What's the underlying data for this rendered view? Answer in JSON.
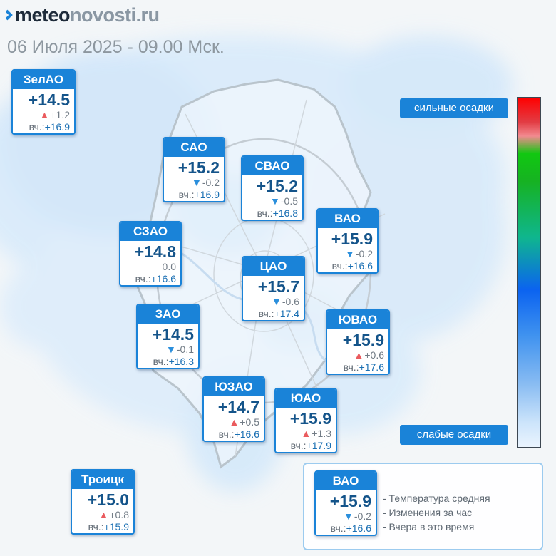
{
  "brand": {
    "meteo": "meteo",
    "novosti": "novosti",
    "ru": ".ru"
  },
  "date_line": "06 Июля 2025 - 09.00 Мск.",
  "yest_label": "вч.:",
  "colorbar": {
    "top_label": "сильные осадки",
    "bottom_label": "слабые осадки",
    "colors": [
      "#ff0000",
      "#11c811",
      "#0b63f0",
      "#eaf4fe"
    ]
  },
  "districts": [
    {
      "name": "ЗелАО",
      "temp": "+14.5",
      "dir": "up",
      "change": "+1.2",
      "yest": "+16.9"
    },
    {
      "name": "САО",
      "temp": "+15.2",
      "dir": "down",
      "change": "-0.2",
      "yest": "+16.9"
    },
    {
      "name": "СВАО",
      "temp": "+15.2",
      "dir": "down",
      "change": "-0.5",
      "yest": "+16.8"
    },
    {
      "name": "ВАО",
      "temp": "+15.9",
      "dir": "down",
      "change": "-0.2",
      "yest": "+16.6"
    },
    {
      "name": "СЗАО",
      "temp": "+14.8",
      "dir": "none",
      "change": "0.0",
      "yest": "+16.6"
    },
    {
      "name": "ЦАО",
      "temp": "+15.7",
      "dir": "down",
      "change": "-0.6",
      "yest": "+17.4"
    },
    {
      "name": "ЗАО",
      "temp": "+14.5",
      "dir": "down",
      "change": "-0.1",
      "yest": "+16.3"
    },
    {
      "name": "ЮВАО",
      "temp": "+15.9",
      "dir": "up",
      "change": "+0.6",
      "yest": "+17.6"
    },
    {
      "name": "ЮЗАО",
      "temp": "+14.7",
      "dir": "up",
      "change": "+0.5",
      "yest": "+16.6"
    },
    {
      "name": "ЮАО",
      "temp": "+15.9",
      "dir": "up",
      "change": "+1.3",
      "yest": "+17.9"
    },
    {
      "name": "Троицк",
      "temp": "+15.0",
      "dir": "up",
      "change": "+0.8",
      "yest": "+15.9"
    }
  ],
  "legend": {
    "sample": {
      "name": "ВАО",
      "temp": "+15.9",
      "dir": "down",
      "change": "-0.2",
      "yest": "+16.6"
    },
    "lines": [
      "- Температура средняя",
      "- Изменения за час",
      "- Вчера в это время"
    ]
  },
  "arrow_colors": {
    "up": "#ea5b5e",
    "down": "#2b8fdc"
  },
  "accent_color": "#1a83d8"
}
